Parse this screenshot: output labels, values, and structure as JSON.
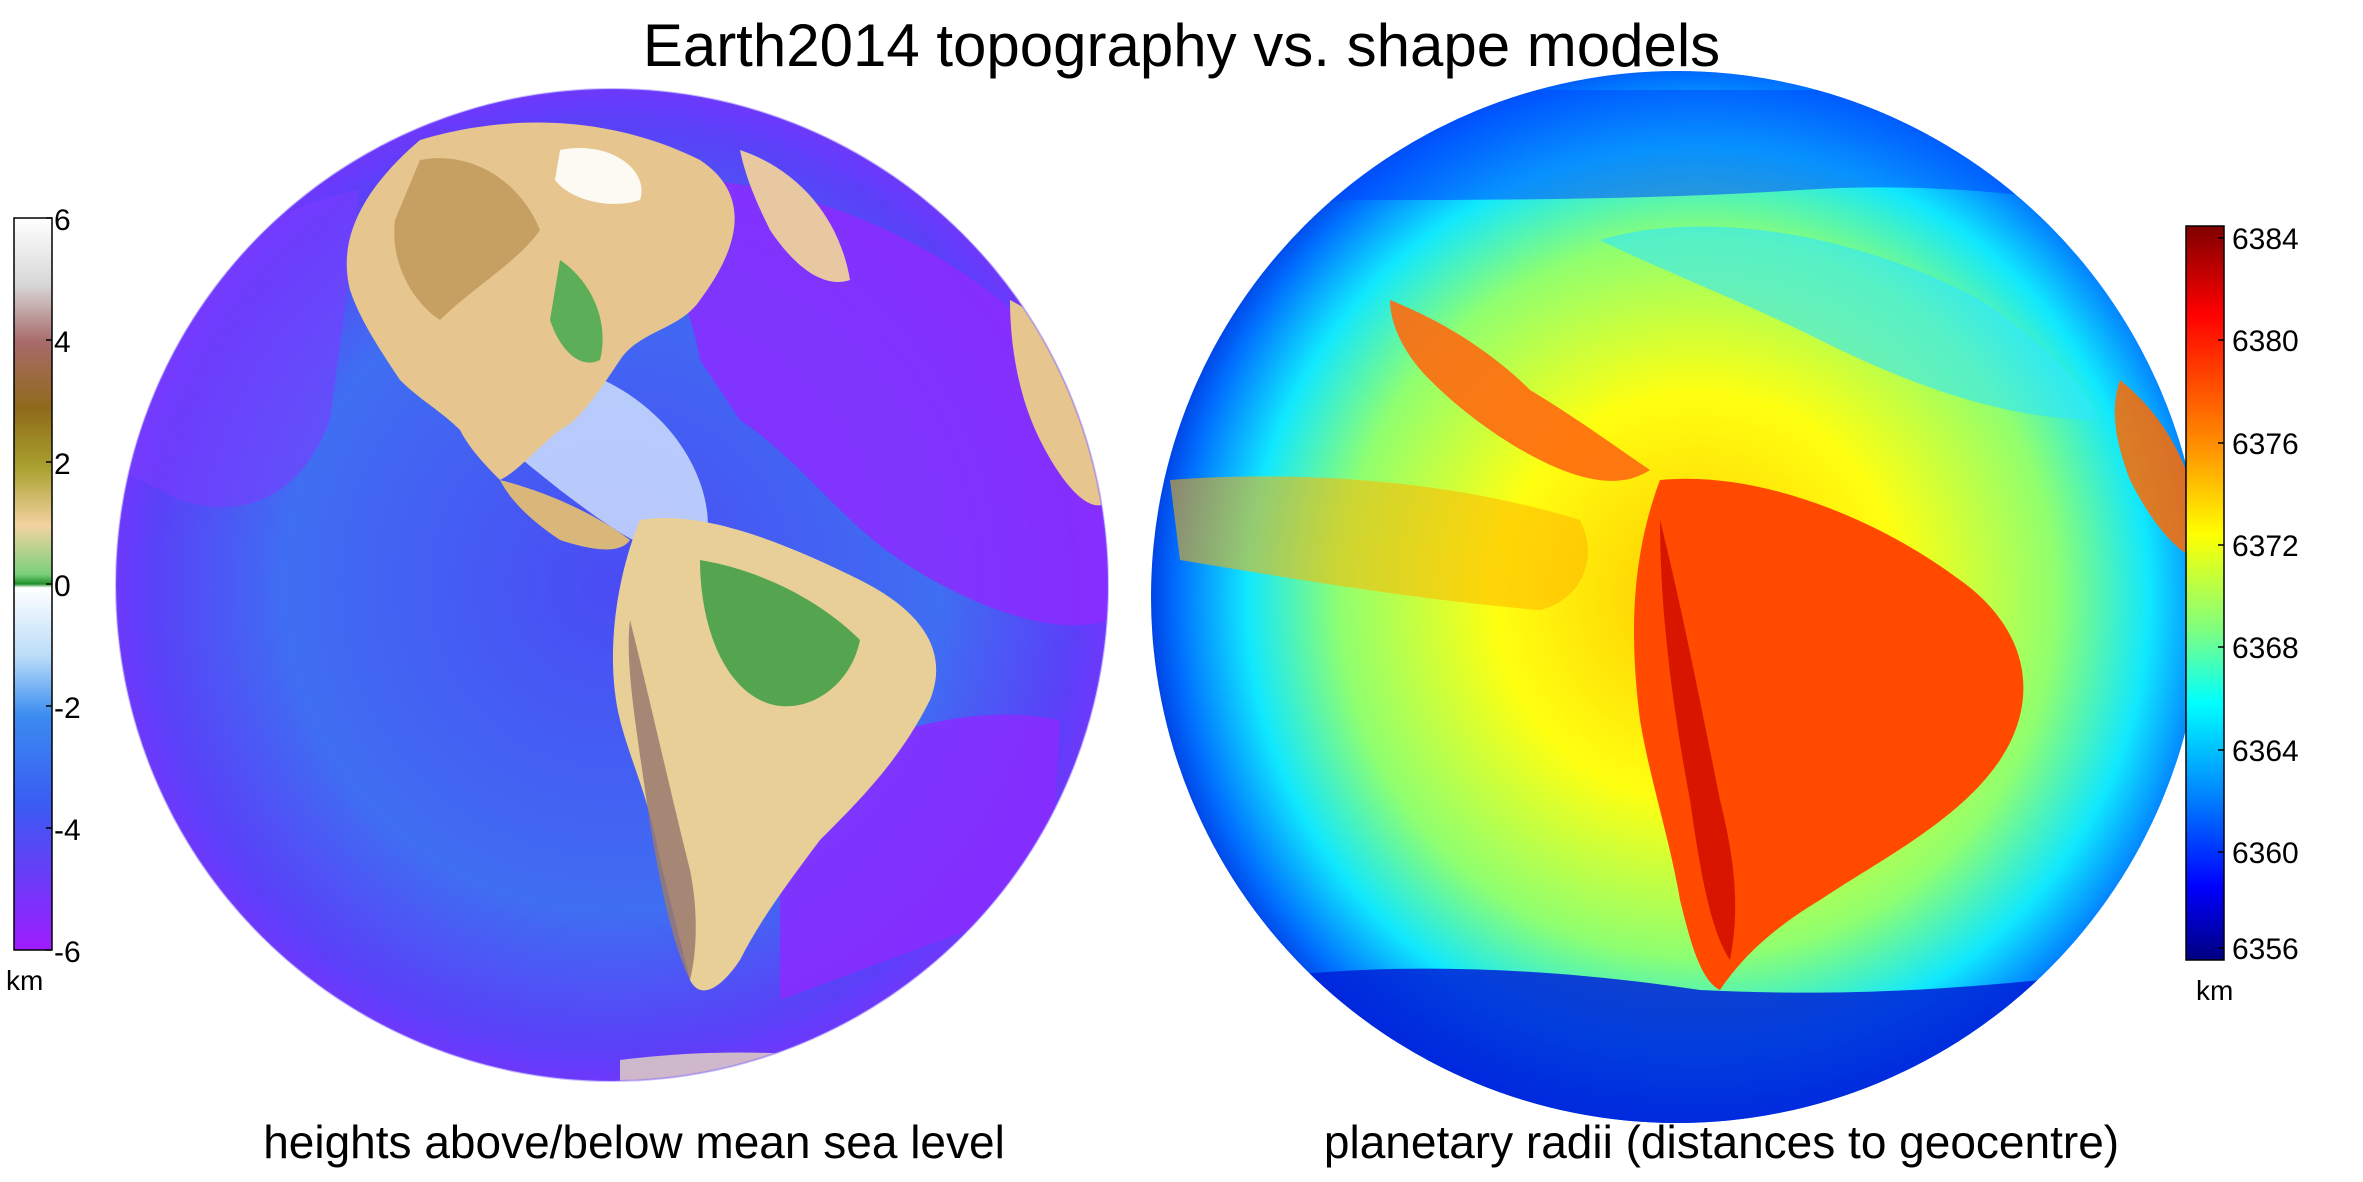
{
  "figure": {
    "title": "Earth2014 topography vs. shape models"
  },
  "left_panel": {
    "caption": "heights above/below mean sea level",
    "colorbar": {
      "unit": "km",
      "ticks": [
        "6",
        "4",
        "2",
        "0",
        "-2",
        "-4",
        "-6"
      ],
      "colors": {
        "ocean_deep": "#9b1cff",
        "ocean_mid": "#2f7cf0",
        "ocean_shallow": "#e8f4ff",
        "coast_green": "#2e9b3a",
        "lowland_tan": "#f0d7a6",
        "upland_brown": "#a07a30",
        "mountain_grey": "#cfcfcf"
      }
    }
  },
  "right_panel": {
    "caption": "planetary radii (distances to geocentre)",
    "colorbar": {
      "unit": "km",
      "ticks": [
        "6384",
        "6380",
        "6376",
        "6372",
        "6368",
        "6364",
        "6360",
        "6356"
      ],
      "colors": {
        "low": "#00008f",
        "mid_low": "#00a8ff",
        "mid": "#1fffe0",
        "mid_high": "#ffff00",
        "high": "#ff5000",
        "max": "#800000"
      }
    }
  }
}
